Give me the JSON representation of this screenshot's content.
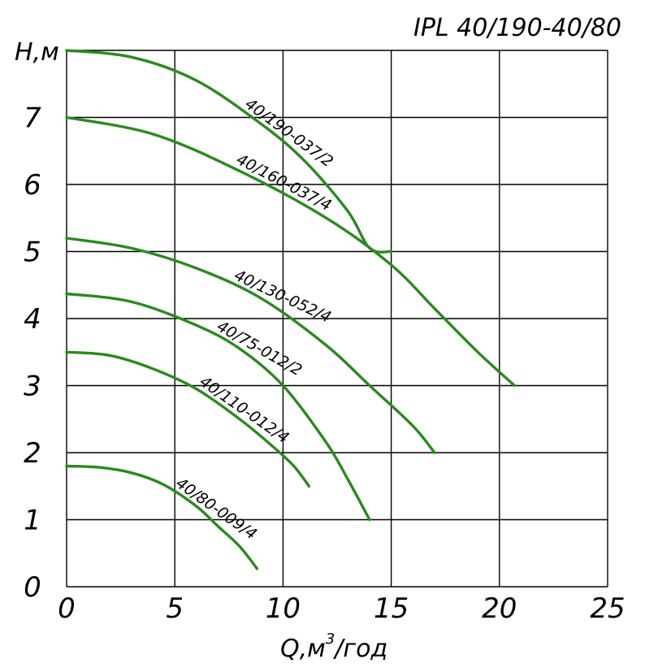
{
  "chart_data": {
    "type": "line",
    "title": "IPL 40/190-40/80",
    "xlabel": "Q,м³/год",
    "ylabel": "Н,м",
    "xlabel_base": "Q,м",
    "xlabel_sup": "3",
    "xlabel_tail": "/год",
    "xlim": [
      0,
      25
    ],
    "ylim": [
      0,
      8
    ],
    "xticks": [
      0,
      5,
      10,
      15,
      20,
      25
    ],
    "yticks": [
      0,
      1,
      2,
      3,
      4,
      5,
      6,
      7
    ],
    "grid": true,
    "line_color": "#2a8a1e",
    "series": [
      {
        "name": "40/190-037/2",
        "x": [
          0,
          3,
          6,
          9,
          11,
          13,
          14,
          15
        ],
        "y": [
          8.0,
          7.9,
          7.55,
          6.9,
          6.35,
          5.6,
          5.05,
          5.0
        ]
      },
      {
        "name": "40/160-037/4",
        "x": [
          0,
          4,
          8,
          12,
          15,
          17,
          19,
          20.7
        ],
        "y": [
          7.0,
          6.75,
          6.2,
          5.5,
          4.8,
          4.15,
          3.5,
          3.0
        ]
      },
      {
        "name": "40/130-052/4",
        "x": [
          0,
          3,
          6,
          9,
          12,
          14,
          16,
          17
        ],
        "y": [
          5.2,
          5.05,
          4.75,
          4.3,
          3.6,
          3.0,
          2.4,
          2.0
        ]
      },
      {
        "name": "40/75-012/2",
        "x": [
          0,
          3,
          6,
          8,
          10,
          12,
          13,
          14
        ],
        "y": [
          4.37,
          4.25,
          3.9,
          3.55,
          3.0,
          2.15,
          1.6,
          1.0
        ]
      },
      {
        "name": "40/110-012/4",
        "x": [
          0,
          2,
          4,
          6,
          8,
          9.5,
          10.5,
          11.2
        ],
        "y": [
          3.5,
          3.45,
          3.25,
          2.95,
          2.5,
          2.1,
          1.8,
          1.5
        ]
      },
      {
        "name": "40/80-009/4",
        "x": [
          0,
          1.5,
          3,
          4.5,
          6,
          7,
          8,
          8.8
        ],
        "y": [
          1.8,
          1.78,
          1.7,
          1.52,
          1.2,
          0.9,
          0.6,
          0.27
        ]
      }
    ]
  }
}
